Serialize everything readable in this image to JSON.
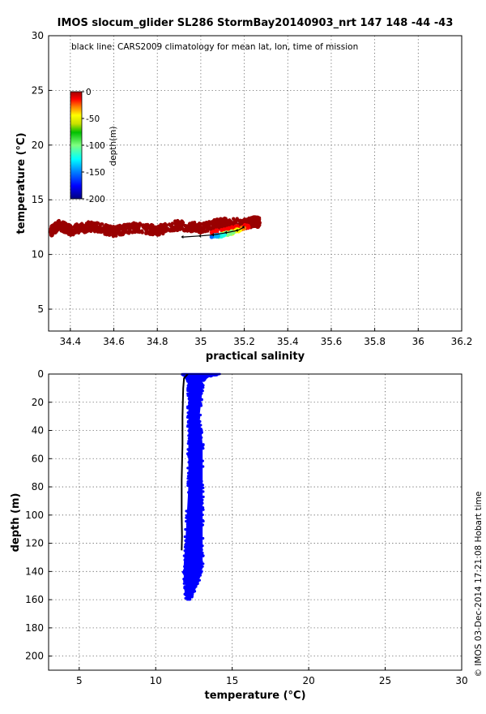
{
  "title": "IMOS slocum_glider SL286 StormBay20140903_nrt 147  148  -44  -43",
  "side_note": "© IMOS 03-Dec-2014 17:21:08 Hobart time",
  "colors": {
    "axis": "#000000",
    "climatology": "#000000",
    "profile_points": "#0000ff"
  },
  "chart_data": [
    {
      "type": "scatter",
      "xlabel": "practical salinity",
      "ylabel": "temperature (°C)",
      "xlim": [
        34.3,
        36.2
      ],
      "ylim": [
        3,
        30
      ],
      "x_ticks": [
        34.4,
        34.6,
        34.8,
        35,
        35.2,
        35.4,
        35.6,
        35.8,
        36,
        36.2
      ],
      "x_tick_labels": [
        "34.4",
        "34.6",
        "34.8",
        "35",
        "35.2",
        "35.4",
        "35.6",
        "35.8",
        "36",
        "36.2"
      ],
      "y_ticks": [
        5,
        10,
        15,
        20,
        25,
        30
      ],
      "y_tick_labels": [
        "5",
        "10",
        "15",
        "20",
        "25",
        "30"
      ],
      "grid": true,
      "annotation": "black line: CARS2009 climatology for mean lat, lon, time of mission",
      "colorbar": {
        "label": "depth(m)",
        "range": [
          -200,
          0
        ],
        "ticks": [
          0,
          -50,
          -100,
          -150,
          -200
        ],
        "tick_labels": [
          "0",
          "-50",
          "-100",
          "-150",
          "-200"
        ],
        "colormap": "jet",
        "placement": "upper-left"
      },
      "point_bands": [
        {
          "depth": -5,
          "points": [
            [
              34.31,
              12.1
            ],
            [
              34.35,
              12.7
            ],
            [
              34.4,
              12.2
            ],
            [
              34.5,
              12.6
            ],
            [
              34.6,
              12.1
            ],
            [
              34.7,
              12.5
            ],
            [
              34.8,
              12.2
            ],
            [
              34.9,
              12.7
            ],
            [
              35.0,
              12.4
            ],
            [
              35.1,
              12.9
            ],
            [
              35.2,
              12.8
            ],
            [
              35.25,
              13.0
            ],
            [
              35.27,
              12.9
            ]
          ]
        },
        {
          "depth": -25,
          "points": [
            [
              35.05,
              12.0
            ],
            [
              35.1,
              12.2
            ],
            [
              35.15,
              12.4
            ],
            [
              35.2,
              12.6
            ],
            [
              35.22,
              12.5
            ]
          ]
        },
        {
          "depth": -50,
          "points": [
            [
              35.12,
              11.9
            ],
            [
              35.16,
              12.2
            ],
            [
              35.2,
              12.4
            ]
          ]
        },
        {
          "depth": -75,
          "points": [
            [
              35.1,
              11.8
            ],
            [
              35.14,
              12.0
            ],
            [
              35.18,
              12.2
            ]
          ]
        },
        {
          "depth": -100,
          "points": [
            [
              35.08,
              11.7
            ],
            [
              35.12,
              11.9
            ],
            [
              35.15,
              12.0
            ]
          ]
        },
        {
          "depth": -120,
          "points": [
            [
              35.09,
              11.75
            ],
            [
              35.11,
              11.8
            ]
          ]
        },
        {
          "depth": -140,
          "points": [
            [
              35.06,
              11.65
            ],
            [
              35.08,
              11.7
            ]
          ]
        },
        {
          "depth": -155,
          "points": [
            [
              35.05,
              11.6
            ]
          ]
        }
      ],
      "climatology": {
        "salinity": [
          34.92,
          35.0,
          35.06,
          35.12,
          35.17,
          35.2
        ],
        "temperature": [
          11.6,
          11.7,
          11.8,
          12.0,
          12.2,
          12.5
        ]
      }
    },
    {
      "type": "scatter",
      "xlabel": "temperature (°C)",
      "ylabel": "depth (m)",
      "xlim": [
        3,
        30
      ],
      "ylim": [
        210,
        0
      ],
      "x_ticks": [
        5,
        10,
        15,
        20,
        25,
        30
      ],
      "x_tick_labels": [
        "5",
        "10",
        "15",
        "20",
        "25",
        "30"
      ],
      "y_ticks": [
        0,
        20,
        40,
        60,
        80,
        100,
        120,
        140,
        160,
        180,
        200
      ],
      "y_tick_labels": [
        "0",
        "20",
        "40",
        "60",
        "80",
        "100",
        "120",
        "140",
        "160",
        "180",
        "200"
      ],
      "grid": true,
      "profile_envelope": {
        "depth": [
          0,
          2,
          5,
          10,
          20,
          30,
          40,
          50,
          60,
          80,
          100,
          120,
          135,
          145,
          150,
          155,
          160
        ],
        "temp_min": [
          11.8,
          12.0,
          12.2,
          12.2,
          12.2,
          12.2,
          12.2,
          12.2,
          12.2,
          12.2,
          12.1,
          12.0,
          11.9,
          11.9,
          12.0,
          12.0,
          12.05
        ],
        "temp_max": [
          14.2,
          13.3,
          13.0,
          13.0,
          12.9,
          12.8,
          12.9,
          13.0,
          13.0,
          13.0,
          13.0,
          13.0,
          13.0,
          12.8,
          12.6,
          12.4,
          12.2
        ]
      },
      "climatology": {
        "temperature": [
          12.1,
          11.85,
          11.8,
          11.75,
          11.75,
          11.7,
          11.7,
          11.72,
          11.7
        ],
        "depth": [
          0,
          3,
          10,
          30,
          50,
          75,
          100,
          115,
          125
        ]
      }
    }
  ]
}
